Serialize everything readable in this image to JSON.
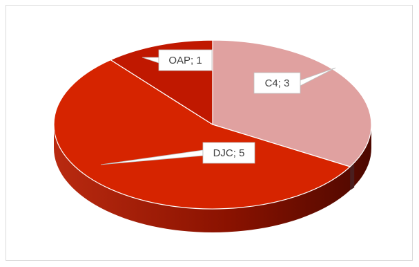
{
  "chart_data": {
    "type": "pie",
    "three_d": true,
    "title": "",
    "legend": "none",
    "slices": [
      {
        "label": "C4",
        "value": 3,
        "display": "C4; 3",
        "color": "#e0a1a0"
      },
      {
        "label": "DJC",
        "value": 5,
        "display": "DJC; 5",
        "color": "#d62400"
      },
      {
        "label": "OAP",
        "value": 1,
        "display": "OAP; 1",
        "color": "#c01800"
      }
    ]
  }
}
